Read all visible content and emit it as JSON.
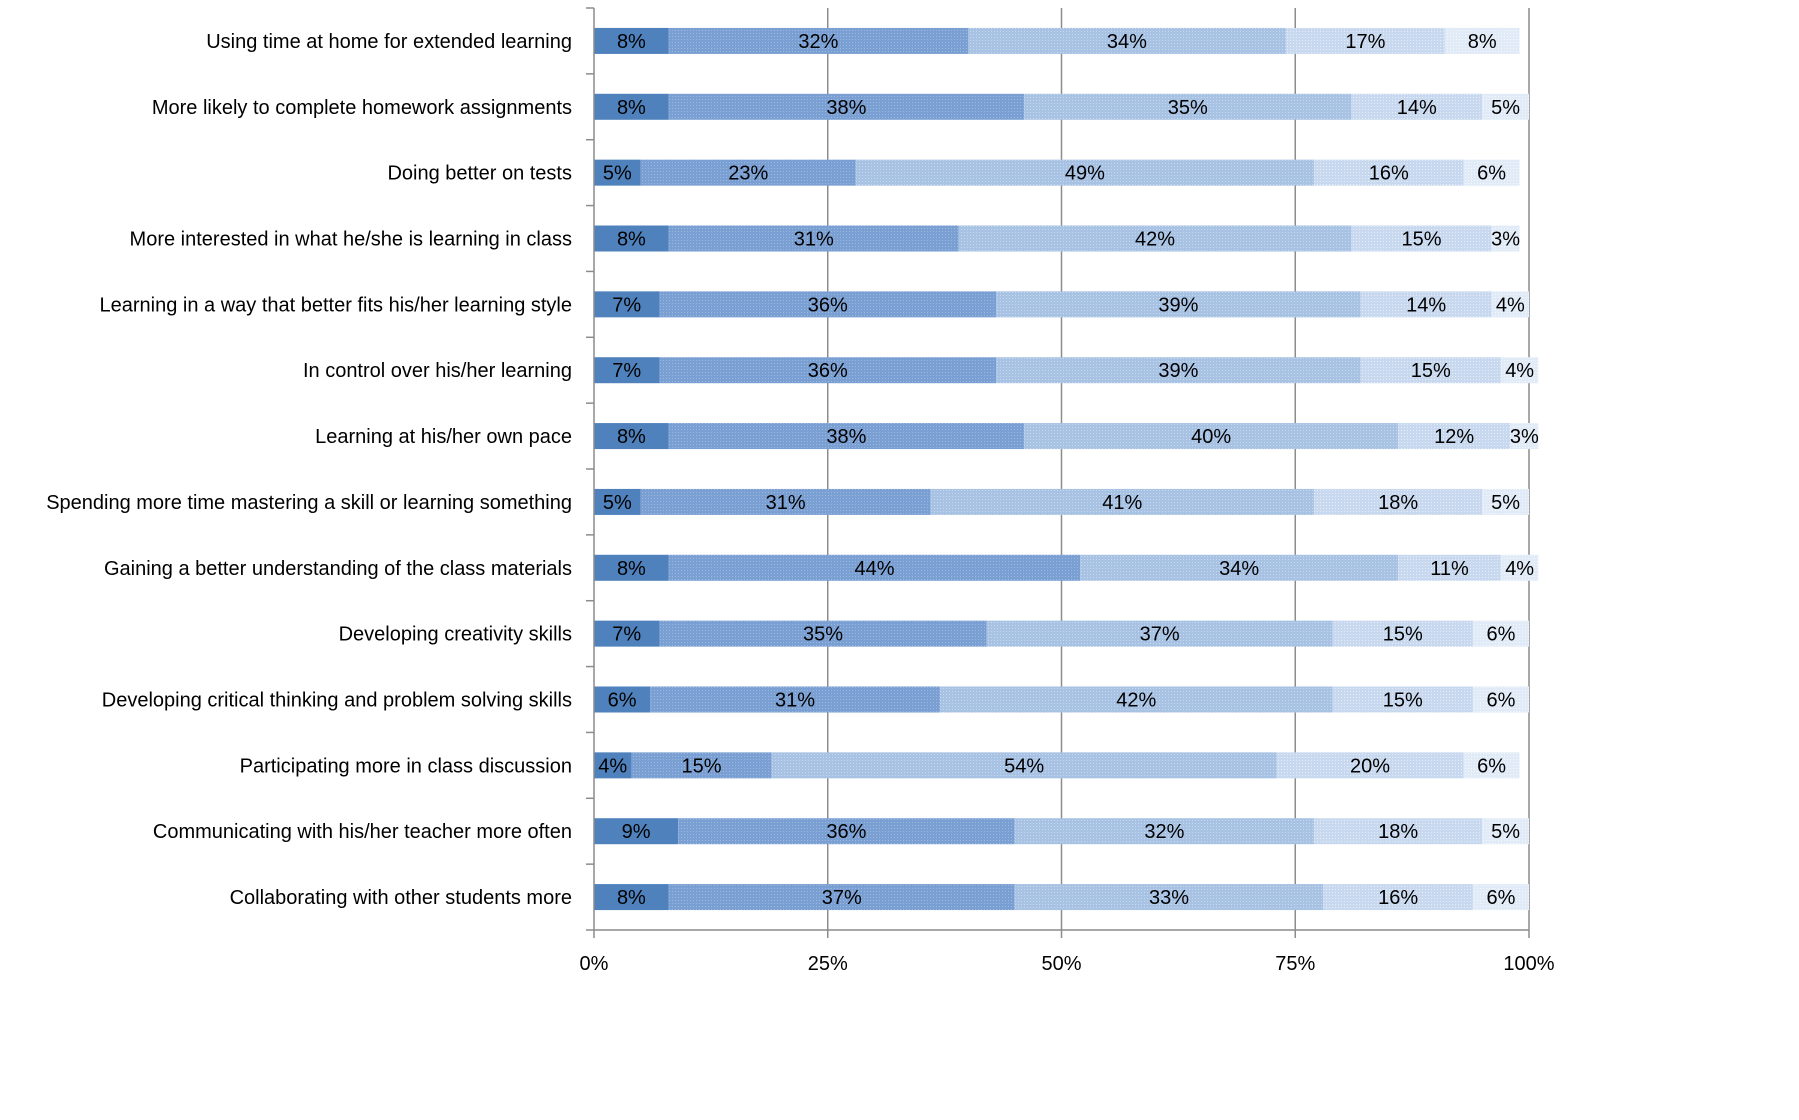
{
  "chart_data": {
    "type": "bar",
    "orientation": "horizontal",
    "stacked": true,
    "normalized": true,
    "title": "",
    "xlabel": "",
    "ylabel": "",
    "xlim": [
      0,
      100
    ],
    "x_ticks": [
      "0%",
      "25%",
      "50%",
      "75%",
      "100%"
    ],
    "grid": "vertical",
    "legend": "none",
    "categories": [
      "Using time at home for extended learning",
      "More likely to complete homework assignments",
      "Doing better on tests",
      "More interested in what he/she is learning in class",
      "Learning in a way that better fits his/her learning style",
      "In control over his/her learning",
      "Learning at his/her own pace",
      "Spending more time mastering a skill or learning something",
      "Gaining a better understanding of the class materials",
      "Developing creativity skills",
      "Developing critical thinking and problem solving skills",
      "Participating more in class discussion",
      "Communicating with his/her teacher more often",
      "Collaborating with other students more"
    ],
    "series": [
      {
        "color": "#4f81bd",
        "values": [
          8,
          8,
          5,
          8,
          7,
          7,
          8,
          5,
          8,
          7,
          6,
          4,
          9,
          8
        ]
      },
      {
        "color": "#7a9fd2",
        "values": [
          32,
          38,
          23,
          31,
          36,
          36,
          38,
          31,
          44,
          35,
          31,
          15,
          36,
          37
        ]
      },
      {
        "color": "#a8c2e4",
        "values": [
          34,
          35,
          49,
          42,
          39,
          39,
          40,
          41,
          34,
          37,
          42,
          54,
          32,
          33
        ]
      },
      {
        "color": "#c8d9ef",
        "values": [
          17,
          14,
          16,
          15,
          14,
          15,
          12,
          18,
          11,
          15,
          15,
          20,
          18,
          16
        ]
      },
      {
        "color": "#e1ebf7",
        "values": [
          8,
          5,
          6,
          3,
          4,
          4,
          3,
          5,
          4,
          6,
          6,
          6,
          5,
          6
        ]
      }
    ]
  }
}
